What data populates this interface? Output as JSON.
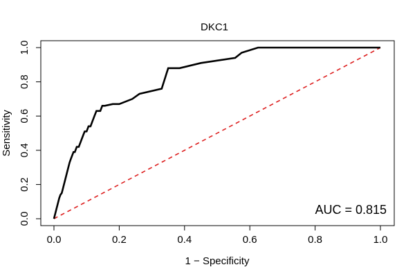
{
  "chart_data": {
    "type": "line",
    "title": "DKC1",
    "xlabel": "1 − Specificity",
    "ylabel": "Sensitivity",
    "xlim": [
      0,
      1
    ],
    "ylim": [
      0,
      1
    ],
    "x_ticks": [
      "0.0",
      "0.2",
      "0.4",
      "0.6",
      "0.8",
      "1.0"
    ],
    "y_ticks": [
      "0.0",
      "0.2",
      "0.4",
      "0.6",
      "0.8",
      "1.0"
    ],
    "grid": false,
    "annotation": "AUC = 0.815",
    "series": [
      {
        "color": "#000000",
        "style": "solid",
        "x": [
          0.0,
          0.004,
          0.008,
          0.012,
          0.016,
          0.02,
          0.024,
          0.028,
          0.032,
          0.036,
          0.04,
          0.044,
          0.048,
          0.052,
          0.056,
          0.06,
          0.064,
          0.07,
          0.076,
          0.082,
          0.088,
          0.094,
          0.1,
          0.106,
          0.112,
          0.118,
          0.124,
          0.13,
          0.136,
          0.142,
          0.148,
          0.156,
          0.18,
          0.2,
          0.24,
          0.262,
          0.33,
          0.335,
          0.34,
          0.345,
          0.35,
          0.385,
          0.45,
          0.555,
          0.575,
          0.625,
          1.0
        ],
        "y": [
          0.0,
          0.03,
          0.06,
          0.09,
          0.12,
          0.14,
          0.15,
          0.18,
          0.21,
          0.24,
          0.27,
          0.3,
          0.33,
          0.35,
          0.37,
          0.39,
          0.39,
          0.42,
          0.42,
          0.45,
          0.48,
          0.51,
          0.51,
          0.54,
          0.54,
          0.57,
          0.6,
          0.63,
          0.63,
          0.63,
          0.66,
          0.66,
          0.67,
          0.67,
          0.7,
          0.73,
          0.76,
          0.79,
          0.82,
          0.85,
          0.88,
          0.88,
          0.91,
          0.94,
          0.97,
          1.0,
          1.0
        ]
      },
      {
        "color": "#dd1f1f",
        "style": "dashed",
        "x": [
          0,
          1
        ],
        "y": [
          0,
          1
        ]
      }
    ]
  }
}
